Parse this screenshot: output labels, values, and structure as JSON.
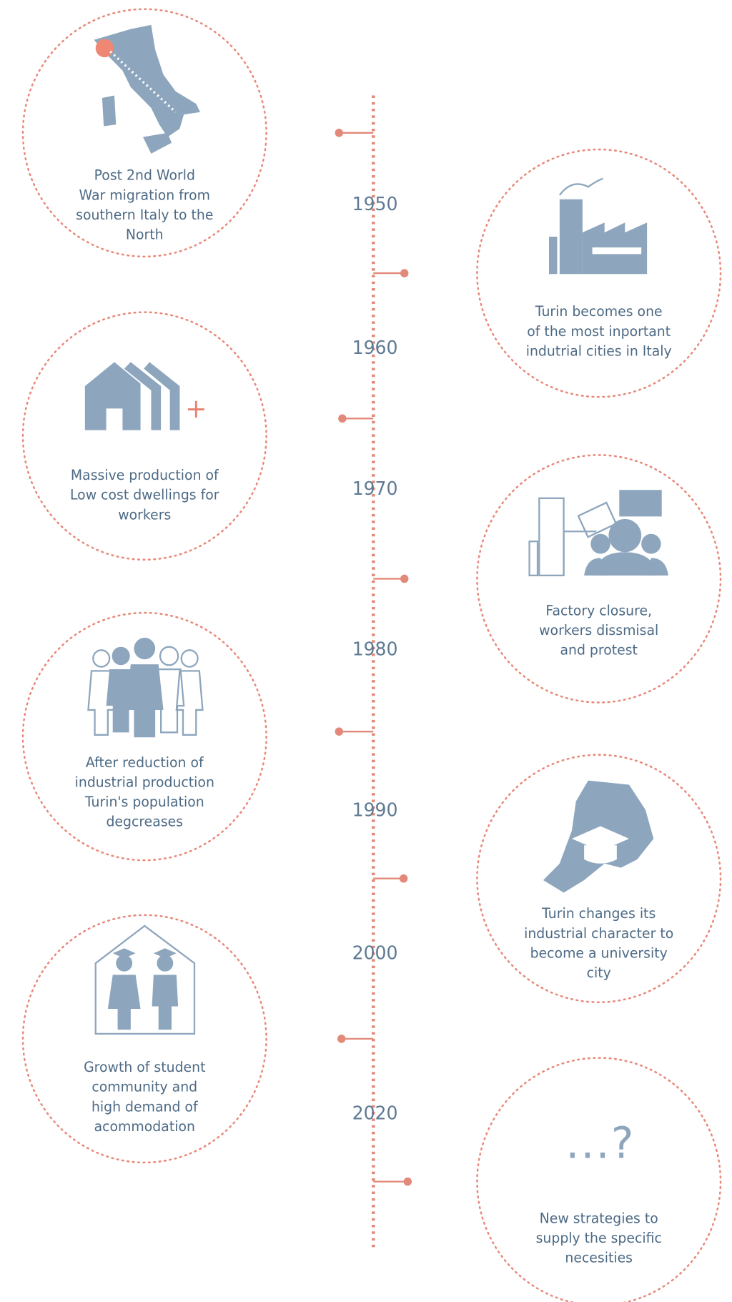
{
  "timeline": {
    "years": [
      "1950",
      "1960",
      "1970",
      "1980",
      "1990",
      "2000",
      "2020"
    ],
    "events": [
      {
        "lines": [
          "Post 2nd World",
          "War migration from",
          "southern Italy to the",
          "North"
        ]
      },
      {
        "lines": [
          "Turin becomes one",
          "of the most inportant",
          "indutrial cities in Italy"
        ]
      },
      {
        "lines": [
          "Massive production of",
          "Low cost dwellings for",
          "workers"
        ]
      },
      {
        "lines": [
          "Factory closure,",
          "workers dissmisal",
          "and protest"
        ]
      },
      {
        "lines": [
          "After reduction of",
          "industrial production",
          "Turin's population",
          "degcreases"
        ]
      },
      {
        "lines": [
          "Turin changes its",
          "industrial character to",
          "become a university",
          "city"
        ]
      },
      {
        "lines": [
          "Growth of student",
          "community and",
          "high demand of",
          "acommodation"
        ]
      },
      {
        "lines": [
          "New strategies to",
          "supply the specific",
          "necesities"
        ]
      }
    ],
    "mystery_mark": "...?"
  }
}
